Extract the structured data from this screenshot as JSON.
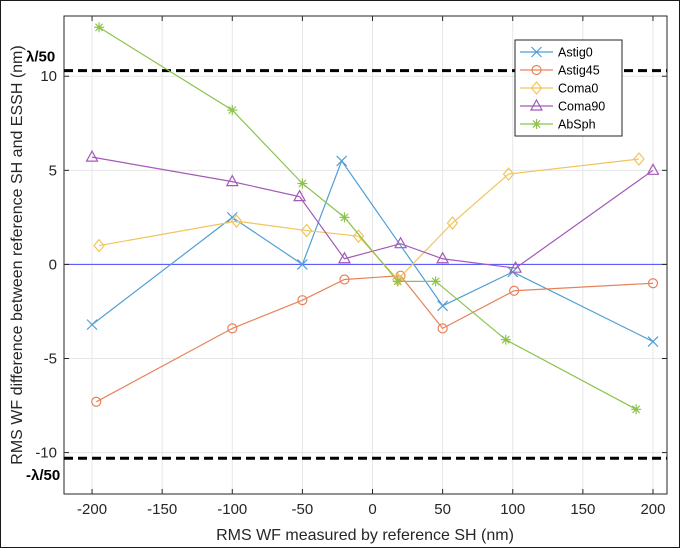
{
  "chart_data": {
    "type": "line",
    "xlabel": "RMS WF measured by reference SH (nm)",
    "ylabel": "RMS WF difference between reference SH and ESSH (nm)",
    "xlim": [
      -220,
      210
    ],
    "ylim": [
      -12.2,
      13.2
    ],
    "xticks": [
      -200,
      -150,
      -100,
      -50,
      0,
      50,
      100,
      150,
      200
    ],
    "yticks": [
      -10,
      -5,
      0,
      5,
      10
    ],
    "grid": true,
    "legend_position": "top-right",
    "zero_line_color": "#4a4aff",
    "threshold_lines": [
      {
        "label": "λ/50",
        "y": 10.3
      },
      {
        "label": "-λ/50",
        "y": -10.3
      }
    ],
    "series": [
      {
        "name": "Astig0",
        "color": "#4f9fd6",
        "marker": "x",
        "x": [
          -200,
          -100,
          -50,
          -22,
          50,
          100,
          200
        ],
        "y": [
          -3.2,
          2.5,
          0.0,
          5.5,
          -2.2,
          -0.4,
          -4.1
        ]
      },
      {
        "name": "Astig45",
        "color": "#e8825a",
        "marker": "circle",
        "x": [
          -197,
          -100,
          -50,
          -20,
          20,
          50,
          101,
          200
        ],
        "y": [
          -7.3,
          -3.4,
          -1.9,
          -0.8,
          -0.6,
          -3.4,
          -1.4,
          -1.0
        ]
      },
      {
        "name": "Coma0",
        "color": "#f2c45a",
        "marker": "diamond",
        "x": [
          -195,
          -97,
          -47,
          -10,
          18,
          57,
          97,
          190
        ],
        "y": [
          1.0,
          2.3,
          1.8,
          1.5,
          -0.8,
          2.2,
          4.8,
          5.6
        ]
      },
      {
        "name": "Coma90",
        "color": "#a25ab8",
        "marker": "triangle",
        "x": [
          -200,
          -100,
          -52,
          -20,
          20,
          50,
          102,
          200
        ],
        "y": [
          5.7,
          4.4,
          3.6,
          0.3,
          1.1,
          0.3,
          -0.2,
          5.0
        ]
      },
      {
        "name": "AbSph",
        "color": "#8bc34a",
        "marker": "asterisk",
        "x": [
          -195,
          -100,
          -50,
          -20,
          18,
          45,
          95,
          188
        ],
        "y": [
          12.6,
          8.2,
          4.3,
          2.5,
          -0.9,
          -0.9,
          -4.0,
          -7.7
        ]
      }
    ]
  }
}
